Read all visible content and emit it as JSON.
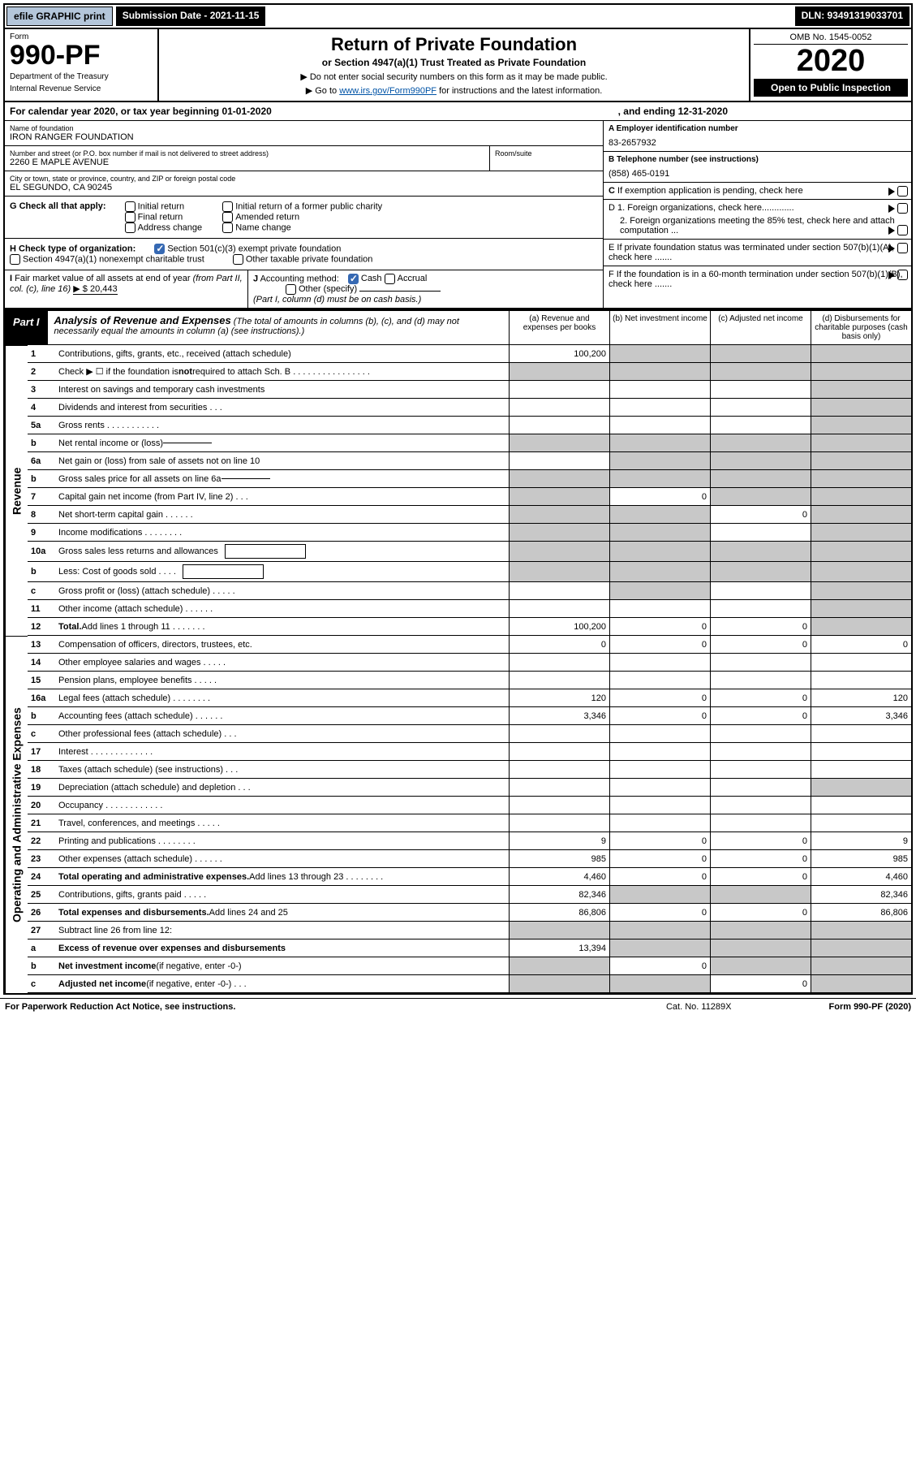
{
  "topbar": {
    "efile": "efile GRAPHIC print",
    "submission": "Submission Date - 2021-11-15",
    "dln": "DLN: 93491319033701"
  },
  "header": {
    "form_label": "Form",
    "form_number": "990-PF",
    "dept": "Department of the Treasury",
    "irs": "Internal Revenue Service",
    "title": "Return of Private Foundation",
    "subtitle": "or Section 4947(a)(1) Trust Treated as Private Foundation",
    "instr1": "▶ Do not enter social security numbers on this form as it may be made public.",
    "instr2_pre": "▶ Go to ",
    "instr2_link": "www.irs.gov/Form990PF",
    "instr2_post": " for instructions and the latest information.",
    "omb": "OMB No. 1545-0052",
    "year": "2020",
    "open": "Open to Public Inspection"
  },
  "calendar": {
    "text": "For calendar year 2020, or tax year beginning 01-01-2020",
    "end": ", and ending 12-31-2020"
  },
  "entity": {
    "name_lbl": "Name of foundation",
    "name": "IRON RANGER FOUNDATION",
    "addr_lbl": "Number and street (or P.O. box number if mail is not delivered to street address)",
    "addr": "2260 E MAPLE AVENUE",
    "room_lbl": "Room/suite",
    "city_lbl": "City or town, state or province, country, and ZIP or foreign postal code",
    "city": "EL SEGUNDO, CA  90245",
    "ein_lbl": "A Employer identification number",
    "ein": "83-2657932",
    "phone_lbl": "B Telephone number (see instructions)",
    "phone": "(858) 465-0191",
    "c_text": "C If exemption application is pending, check here",
    "d1": "D 1. Foreign organizations, check here.............",
    "d2": "2. Foreign organizations meeting the 85% test, check here and attach computation ...",
    "e_text": "E  If private foundation status was terminated under section 507(b)(1)(A), check here .......",
    "f_text": "F  If the foundation is in a 60-month termination under section 507(b)(1)(B), check here .......",
    "g_lbl": "G Check all that apply:",
    "g_opts": [
      "Initial return",
      "Final return",
      "Address change",
      "Initial return of a former public charity",
      "Amended return",
      "Name change"
    ],
    "h_lbl": "H Check type of organization:",
    "h_opts": [
      "Section 501(c)(3) exempt private foundation",
      "Section 4947(a)(1) nonexempt charitable trust",
      "Other taxable private foundation"
    ],
    "i_text": "I Fair market value of all assets at end of year (from Part II, col. (c), line 16)",
    "i_val": "▶ $  20,443",
    "j_text": "J Accounting method:",
    "j_cash": "Cash",
    "j_accr": "Accrual",
    "j_other": "Other (specify)",
    "j_note": "(Part I, column (d) must be on cash basis.)"
  },
  "part1": {
    "tag": "Part I",
    "title": "Analysis of Revenue and Expenses",
    "note": "(The total of amounts in columns (b), (c), and (d) may not necessarily equal the amounts in column (a) (see instructions).)",
    "cols": {
      "a": "(a) Revenue and expenses per books",
      "b": "(b) Net investment income",
      "c": "(c) Adjusted net income",
      "d": "(d) Disbursements for charitable purposes (cash basis only)"
    }
  },
  "sides": {
    "rev": "Revenue",
    "op": "Operating and Administrative Expenses"
  },
  "rows": [
    {
      "n": "1",
      "d": "Contributions, gifts, grants, etc., received (attach schedule)",
      "a": "100,200",
      "b": "",
      "c": "",
      "dd": "",
      "ds": true,
      "bs": true,
      "cs": true
    },
    {
      "n": "2",
      "d": "Check ▶ ☐ if the foundation is <b>not</b> required to attach Sch. B  .  .  .  .  .  .  .  .  .  .  .  .  .  .  .  .",
      "a": "",
      "b": "",
      "c": "",
      "dd": "",
      "as": true,
      "bs": true,
      "cs": true,
      "ds": true
    },
    {
      "n": "3",
      "d": "Interest on savings and temporary cash investments",
      "a": "",
      "b": "",
      "c": "",
      "dd": "",
      "ds": true
    },
    {
      "n": "4",
      "d": "Dividends and interest from securities  .  .  .",
      "a": "",
      "b": "",
      "c": "",
      "dd": "",
      "ds": true
    },
    {
      "n": "5a",
      "d": "Gross rents  .  .  .  .  .  .  .  .  .  .  .",
      "a": "",
      "b": "",
      "c": "",
      "dd": "",
      "ds": true
    },
    {
      "n": "b",
      "d": "Net rental income or (loss)  <span class='dline'></span>",
      "a": "",
      "b": "",
      "c": "",
      "dd": "",
      "as": true,
      "bs": true,
      "cs": true,
      "ds": true
    },
    {
      "n": "6a",
      "d": "Net gain or (loss) from sale of assets not on line 10",
      "a": "",
      "b": "",
      "c": "",
      "dd": "",
      "bs": true,
      "cs": true,
      "ds": true
    },
    {
      "n": "b",
      "d": "Gross sales price for all assets on line 6a <span class='dline'></span>",
      "a": "",
      "b": "",
      "c": "",
      "dd": "",
      "as": true,
      "bs": true,
      "cs": true,
      "ds": true
    },
    {
      "n": "7",
      "d": "Capital gain net income (from Part IV, line 2)  .  .  .",
      "a": "",
      "b": "0",
      "c": "",
      "dd": "",
      "as": true,
      "cs": true,
      "ds": true
    },
    {
      "n": "8",
      "d": "Net short-term capital gain  .  .  .  .  .  .",
      "a": "",
      "b": "",
      "c": "0",
      "dd": "",
      "as": true,
      "bs": true,
      "ds": true
    },
    {
      "n": "9",
      "d": "Income modifications  .  .  .  .  .  .  .  .",
      "a": "",
      "b": "",
      "c": "",
      "dd": "",
      "as": true,
      "bs": true,
      "ds": true
    },
    {
      "n": "10a",
      "d": "Gross sales less returns and allowances <span class='innerbox'></span>",
      "a": "",
      "b": "",
      "c": "",
      "dd": "",
      "as": true,
      "bs": true,
      "cs": true,
      "ds": true
    },
    {
      "n": "b",
      "d": "Less: Cost of goods sold  .  .  .  . <span class='innerbox'></span>",
      "a": "",
      "b": "",
      "c": "",
      "dd": "",
      "as": true,
      "bs": true,
      "cs": true,
      "ds": true
    },
    {
      "n": "c",
      "d": "Gross profit or (loss) (attach schedule)  .  .  .  .  .",
      "a": "",
      "b": "",
      "c": "",
      "dd": "",
      "bs": true,
      "ds": true
    },
    {
      "n": "11",
      "d": "Other income (attach schedule)  .  .  .  .  .  .",
      "a": "",
      "b": "",
      "c": "",
      "dd": "",
      "ds": true
    },
    {
      "n": "12",
      "d": "<b>Total.</b> Add lines 1 through 11  .  .  .  .  .  .  .",
      "a": "100,200",
      "b": "0",
      "c": "0",
      "dd": "",
      "ds": true
    },
    {
      "n": "13",
      "d": "Compensation of officers, directors, trustees, etc.",
      "a": "0",
      "b": "0",
      "c": "0",
      "dd": "0"
    },
    {
      "n": "14",
      "d": "Other employee salaries and wages  .  .  .  .  .",
      "a": "",
      "b": "",
      "c": "",
      "dd": ""
    },
    {
      "n": "15",
      "d": "Pension plans, employee benefits  .  .  .  .  .",
      "a": "",
      "b": "",
      "c": "",
      "dd": ""
    },
    {
      "n": "16a",
      "d": "Legal fees (attach schedule)  .  .  .  .  .  .  .  .",
      "a": "120",
      "b": "0",
      "c": "0",
      "dd": "120"
    },
    {
      "n": "b",
      "d": "Accounting fees (attach schedule)  .  .  .  .  .  .",
      "a": "3,346",
      "b": "0",
      "c": "0",
      "dd": "3,346"
    },
    {
      "n": "c",
      "d": "Other professional fees (attach schedule)  .  .  .",
      "a": "",
      "b": "",
      "c": "",
      "dd": ""
    },
    {
      "n": "17",
      "d": "Interest  .  .  .  .  .  .  .  .  .  .  .  .  .",
      "a": "",
      "b": "",
      "c": "",
      "dd": ""
    },
    {
      "n": "18",
      "d": "Taxes (attach schedule) (see instructions)  .  .  .",
      "a": "",
      "b": "",
      "c": "",
      "dd": ""
    },
    {
      "n": "19",
      "d": "Depreciation (attach schedule) and depletion  .  .  .",
      "a": "",
      "b": "",
      "c": "",
      "dd": "",
      "ds": true
    },
    {
      "n": "20",
      "d": "Occupancy  .  .  .  .  .  .  .  .  .  .  .  .",
      "a": "",
      "b": "",
      "c": "",
      "dd": ""
    },
    {
      "n": "21",
      "d": "Travel, conferences, and meetings  .  .  .  .  .",
      "a": "",
      "b": "",
      "c": "",
      "dd": ""
    },
    {
      "n": "22",
      "d": "Printing and publications  .  .  .  .  .  .  .  .",
      "a": "9",
      "b": "0",
      "c": "0",
      "dd": "9"
    },
    {
      "n": "23",
      "d": "Other expenses (attach schedule)  .  .  .  .  .  .",
      "a": "985",
      "b": "0",
      "c": "0",
      "dd": "985"
    },
    {
      "n": "24",
      "d": "<b>Total operating and administrative expenses.</b> Add lines 13 through 23  .  .  .  .  .  .  .  .",
      "a": "4,460",
      "b": "0",
      "c": "0",
      "dd": "4,460"
    },
    {
      "n": "25",
      "d": "Contributions, gifts, grants paid  .  .  .  .  .",
      "a": "82,346",
      "b": "",
      "c": "",
      "dd": "82,346",
      "bs": true,
      "cs": true
    },
    {
      "n": "26",
      "d": "<b>Total expenses and disbursements.</b> Add lines 24 and 25",
      "a": "86,806",
      "b": "0",
      "c": "0",
      "dd": "86,806"
    },
    {
      "n": "27",
      "d": "Subtract line 26 from line 12:",
      "a": "",
      "b": "",
      "c": "",
      "dd": "",
      "as": true,
      "bs": true,
      "cs": true,
      "ds": true
    },
    {
      "n": "a",
      "d": "<b>Excess of revenue over expenses and disbursements</b>",
      "a": "13,394",
      "b": "",
      "c": "",
      "dd": "",
      "bs": true,
      "cs": true,
      "ds": true
    },
    {
      "n": "b",
      "d": "<b>Net investment income</b> (if negative, enter -0-)",
      "a": "",
      "b": "0",
      "c": "",
      "dd": "",
      "as": true,
      "cs": true,
      "ds": true
    },
    {
      "n": "c",
      "d": "<b>Adjusted net income</b> (if negative, enter -0-)  .  .  .",
      "a": "",
      "b": "",
      "c": "0",
      "dd": "",
      "as": true,
      "bs": true,
      "ds": true
    }
  ],
  "footer": {
    "left": "For Paperwork Reduction Act Notice, see instructions.",
    "mid": "Cat. No. 11289X",
    "right": "Form 990-PF (2020)"
  },
  "revspan": {
    "start": 0,
    "end": 16
  },
  "opspan": {
    "start": 16,
    "end": 36
  }
}
